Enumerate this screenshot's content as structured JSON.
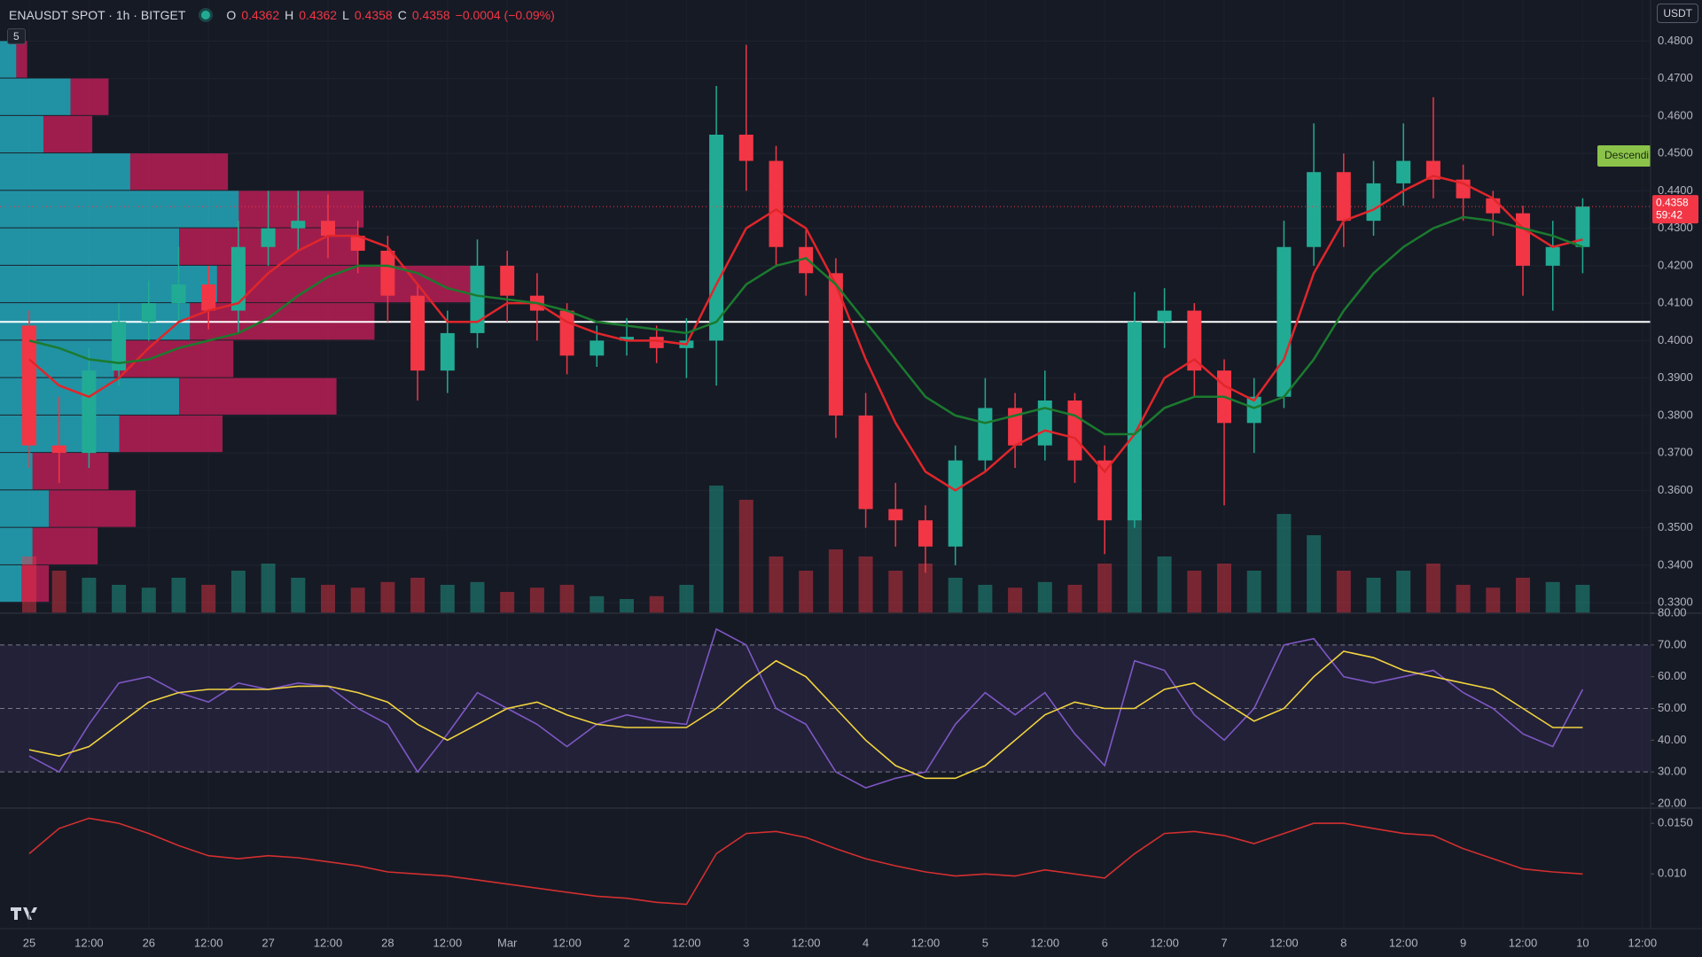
{
  "header": {
    "symbol": "ENAUSDT SPOT · 1h · BITGET",
    "o_label": "O",
    "open": 0.4362,
    "h_label": "H",
    "high": 0.4362,
    "l_label": "L",
    "low": 0.4358,
    "c_label": "C",
    "close": 0.4358,
    "change": "−0.0004 (−0.09%)",
    "currency": "USDT",
    "indicators": "5"
  },
  "chart_data": [
    {
      "type": "candlestick",
      "categories": [
        "25",
        null,
        "12:00",
        null,
        "26",
        null,
        "12:00",
        null,
        "27",
        null,
        "12:00",
        null,
        "28",
        null,
        "12:00",
        null,
        "Mar",
        null,
        "12:00",
        null,
        "2",
        null,
        "12:00",
        null,
        "3",
        null,
        "12:00",
        null,
        "4",
        null,
        "12:00",
        null,
        "5",
        null,
        "12:00",
        null,
        "6",
        null,
        "12:00",
        null,
        "7",
        null,
        "12:00",
        null,
        "8",
        null,
        "12:00",
        null,
        "9",
        null,
        "12:00",
        null,
        "10",
        null,
        "12:00"
      ],
      "open": [
        0.404,
        0.372,
        0.37,
        0.392,
        0.405,
        0.41,
        0.415,
        0.408,
        0.425,
        0.43,
        0.432,
        0.428,
        0.424,
        0.412,
        0.392,
        0.402,
        0.42,
        0.412,
        0.408,
        0.396,
        0.4,
        0.401,
        0.398,
        0.4,
        0.455,
        0.448,
        0.425,
        0.418,
        0.38,
        0.355,
        0.352,
        0.345,
        0.368,
        0.382,
        0.372,
        0.384,
        0.368,
        0.352,
        0.405,
        0.408,
        0.392,
        0.378,
        0.385,
        0.425,
        0.445,
        0.432,
        0.442,
        0.448,
        0.443,
        0.438,
        0.434,
        0.42,
        0.425,
        null,
        null
      ],
      "high": [
        0.408,
        0.385,
        0.398,
        0.41,
        0.416,
        0.425,
        0.42,
        0.432,
        0.44,
        0.44,
        0.439,
        0.432,
        0.428,
        0.415,
        0.408,
        0.427,
        0.424,
        0.418,
        0.41,
        0.404,
        0.406,
        0.404,
        0.406,
        0.468,
        0.479,
        0.452,
        0.43,
        0.422,
        0.386,
        0.362,
        0.356,
        0.372,
        0.39,
        0.386,
        0.392,
        0.386,
        0.372,
        0.413,
        0.414,
        0.41,
        0.395,
        0.39,
        0.432,
        0.458,
        0.45,
        0.448,
        0.458,
        0.465,
        0.447,
        0.44,
        0.436,
        0.432,
        0.438,
        null,
        null
      ],
      "low": [
        0.366,
        0.362,
        0.366,
        0.388,
        0.4,
        0.405,
        0.403,
        0.402,
        0.42,
        0.424,
        0.422,
        0.418,
        0.405,
        0.384,
        0.386,
        0.398,
        0.405,
        0.4,
        0.391,
        0.393,
        0.396,
        0.394,
        0.39,
        0.388,
        0.44,
        0.42,
        0.412,
        0.374,
        0.35,
        0.345,
        0.338,
        0.34,
        0.365,
        0.366,
        0.368,
        0.362,
        0.343,
        0.35,
        0.398,
        0.385,
        0.356,
        0.37,
        0.382,
        0.42,
        0.425,
        0.428,
        0.436,
        0.438,
        0.432,
        0.428,
        0.412,
        0.408,
        0.418,
        null,
        null
      ],
      "close": [
        0.372,
        0.37,
        0.392,
        0.405,
        0.41,
        0.415,
        0.408,
        0.425,
        0.43,
        0.432,
        0.428,
        0.424,
        0.412,
        0.392,
        0.402,
        0.42,
        0.412,
        0.408,
        0.396,
        0.4,
        0.401,
        0.398,
        0.4,
        0.455,
        0.448,
        0.425,
        0.418,
        0.38,
        0.355,
        0.352,
        0.345,
        0.368,
        0.382,
        0.372,
        0.384,
        0.368,
        0.352,
        0.405,
        0.408,
        0.392,
        0.378,
        0.385,
        0.425,
        0.445,
        0.432,
        0.442,
        0.448,
        0.443,
        0.438,
        0.434,
        0.42,
        0.425,
        0.4358,
        null,
        null
      ],
      "up_color": "#22ab94",
      "down_color": "#f23645",
      "volume": {
        "values": [
          40,
          30,
          25,
          20,
          18,
          25,
          20,
          30,
          35,
          25,
          20,
          18,
          22,
          25,
          20,
          22,
          15,
          18,
          20,
          12,
          10,
          12,
          20,
          90,
          80,
          40,
          30,
          45,
          40,
          30,
          35,
          25,
          20,
          18,
          22,
          20,
          35,
          70,
          40,
          30,
          35,
          30,
          70,
          55,
          30,
          25,
          30,
          35,
          20,
          18,
          25,
          22,
          20,
          null,
          null
        ],
        "ylim": [
          0,
          100
        ]
      },
      "series": [
        {
          "color": "#e0262b",
          "values": [
            0.395,
            0.388,
            0.385,
            0.39,
            0.398,
            0.405,
            0.408,
            0.41,
            0.418,
            0.424,
            0.428,
            0.428,
            0.425,
            0.415,
            0.405,
            0.405,
            0.41,
            0.41,
            0.405,
            0.402,
            0.4,
            0.4,
            0.399,
            0.415,
            0.43,
            0.435,
            0.43,
            0.415,
            0.395,
            0.378,
            0.365,
            0.36,
            0.365,
            0.372,
            0.376,
            0.374,
            0.365,
            0.375,
            0.39,
            0.395,
            0.388,
            0.384,
            0.395,
            0.418,
            0.432,
            0.435,
            0.44,
            0.444,
            0.442,
            0.438,
            0.43,
            0.425,
            0.427,
            null,
            null
          ]
        },
        {
          "color": "#1b7a2e",
          "values": [
            0.4,
            0.398,
            0.395,
            0.394,
            0.395,
            0.398,
            0.4,
            0.402,
            0.406,
            0.412,
            0.417,
            0.42,
            0.42,
            0.418,
            0.414,
            0.412,
            0.411,
            0.41,
            0.408,
            0.405,
            0.404,
            0.403,
            0.402,
            0.405,
            0.415,
            0.42,
            0.422,
            0.415,
            0.405,
            0.395,
            0.385,
            0.38,
            0.378,
            0.38,
            0.382,
            0.38,
            0.375,
            0.375,
            0.382,
            0.385,
            0.385,
            0.382,
            0.385,
            0.395,
            0.408,
            0.418,
            0.425,
            0.43,
            0.433,
            0.432,
            0.43,
            0.428,
            0.425,
            null,
            null
          ]
        }
      ],
      "volume_profile": {
        "prices": [
          0.475,
          0.465,
          0.455,
          0.445,
          0.435,
          0.425,
          0.415,
          0.405,
          0.395,
          0.385,
          0.375,
          0.365,
          0.355,
          0.345,
          0.335
        ],
        "up": [
          15,
          65,
          40,
          120,
          220,
          165,
          200,
          175,
          105,
          165,
          110,
          30,
          45,
          30,
          20
        ],
        "down": [
          10,
          35,
          45,
          90,
          115,
          165,
          240,
          170,
          110,
          145,
          95,
          70,
          80,
          60,
          25
        ]
      },
      "horizontal_line": 0.405,
      "last_price": 0.4358,
      "countdown": "59:42",
      "annotation": "Descendi",
      "ylim": [
        0.3272,
        0.4815
      ],
      "yticks": [
        {
          "value": 0.33,
          "label": "0.3300"
        },
        {
          "value": 0.34,
          "label": "0.3400"
        },
        {
          "value": 0.35,
          "label": "0.3500"
        },
        {
          "value": 0.36,
          "label": "0.3600"
        },
        {
          "value": 0.37,
          "label": "0.3700"
        },
        {
          "value": 0.38,
          "label": "0.3800"
        },
        {
          "value": 0.39,
          "label": "0.3900"
        },
        {
          "value": 0.4,
          "label": "0.4000"
        },
        {
          "value": 0.41,
          "label": "0.4100"
        },
        {
          "value": 0.42,
          "label": "0.4200"
        },
        {
          "value": 0.43,
          "label": "0.4300"
        },
        {
          "value": 0.44,
          "label": "0.4400"
        },
        {
          "value": 0.45,
          "label": "0.4500"
        },
        {
          "value": 0.46,
          "label": "0.4600"
        },
        {
          "value": 0.47,
          "label": "0.4700"
        },
        {
          "value": 0.48,
          "label": "0.4800"
        }
      ],
      "grid": true
    },
    {
      "type": "line",
      "series": [
        {
          "color": "#7e57c2",
          "values": [
            35,
            30,
            45,
            58,
            60,
            55,
            52,
            58,
            56,
            58,
            57,
            50,
            45,
            30,
            42,
            55,
            50,
            45,
            38,
            45,
            48,
            46,
            45,
            75,
            70,
            50,
            45,
            30,
            25,
            28,
            30,
            45,
            55,
            48,
            55,
            42,
            32,
            65,
            62,
            48,
            40,
            50,
            70,
            72,
            60,
            58,
            60,
            62,
            55,
            50,
            42,
            38,
            56,
            null,
            null
          ]
        },
        {
          "color": "#f2d43f",
          "values": [
            37,
            35,
            38,
            45,
            52,
            55,
            56,
            56,
            56,
            57,
            57,
            55,
            52,
            45,
            40,
            45,
            50,
            52,
            48,
            45,
            44,
            44,
            44,
            50,
            58,
            65,
            60,
            50,
            40,
            32,
            28,
            28,
            32,
            40,
            48,
            52,
            50,
            50,
            56,
            58,
            52,
            46,
            50,
            60,
            68,
            66,
            62,
            60,
            58,
            56,
            50,
            44,
            44,
            null,
            null
          ]
        }
      ],
      "levels": [
        30,
        50,
        70
      ],
      "ylim": [
        18.6,
        80
      ],
      "yticks": [
        {
          "value": 20,
          "label": "20.00"
        },
        {
          "value": 30,
          "label": "30.00"
        },
        {
          "value": 40,
          "label": "40.00"
        },
        {
          "value": 50,
          "label": "50.00"
        },
        {
          "value": 60,
          "label": "60.00"
        },
        {
          "value": 70,
          "label": "70.00"
        },
        {
          "value": 80,
          "label": "80.00"
        }
      ]
    },
    {
      "type": "line",
      "series": [
        {
          "color": "#d32f2f",
          "values": [
            0.012,
            0.0145,
            0.0155,
            0.015,
            0.014,
            0.0128,
            0.0118,
            0.0115,
            0.0118,
            0.0116,
            0.0112,
            0.0108,
            0.0102,
            0.01,
            0.0098,
            0.0094,
            0.009,
            0.0086,
            0.0082,
            0.0078,
            0.0076,
            0.0072,
            0.007,
            0.012,
            0.014,
            0.0142,
            0.0136,
            0.0125,
            0.0115,
            0.0108,
            0.0102,
            0.0098,
            0.01,
            0.0098,
            0.0104,
            0.01,
            0.0096,
            0.012,
            0.014,
            0.0142,
            0.0138,
            0.013,
            0.014,
            0.015,
            0.015,
            0.0145,
            0.014,
            0.0138,
            0.0125,
            0.0115,
            0.0105,
            0.0102,
            0.01,
            null,
            null
          ]
        }
      ],
      "ylim": [
        0.0046,
        0.0165
      ],
      "yticks": [
        {
          "value": 0.01,
          "label": "0.010"
        },
        {
          "value": 0.015,
          "label": "0.0150"
        }
      ]
    }
  ]
}
